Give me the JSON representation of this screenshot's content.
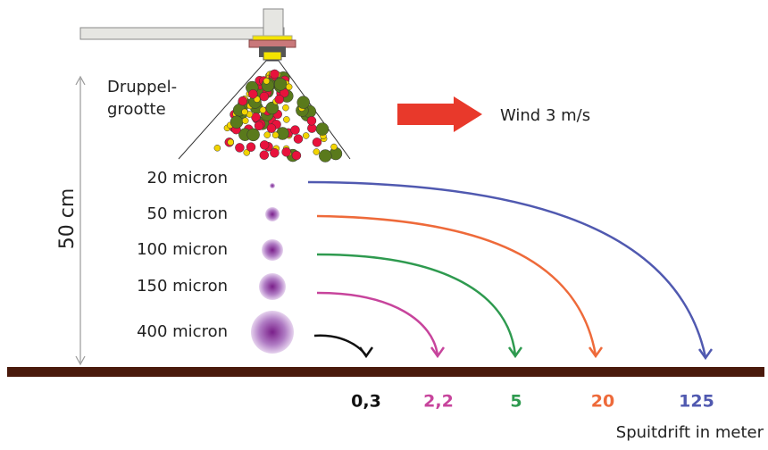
{
  "nozzle_label": {
    "line1": "Druppel-",
    "line2": "grootte"
  },
  "wind_label": "Wind 3 m/s",
  "height_label": "50 cm",
  "droplets": [
    {
      "size_label": "20 micron",
      "drift": "125",
      "color": "#5059b0"
    },
    {
      "size_label": "50 micron",
      "drift": "20",
      "color": "#ee6a3a"
    },
    {
      "size_label": "100 micron",
      "drift": "5",
      "color": "#2e9a4f"
    },
    {
      "size_label": "150 micron",
      "drift": "2,2",
      "color": "#c7449c"
    },
    {
      "size_label": "400 micron",
      "drift": "0,3",
      "color": "#111111"
    }
  ],
  "x_axis_label": "Spuitdrift in meter"
}
